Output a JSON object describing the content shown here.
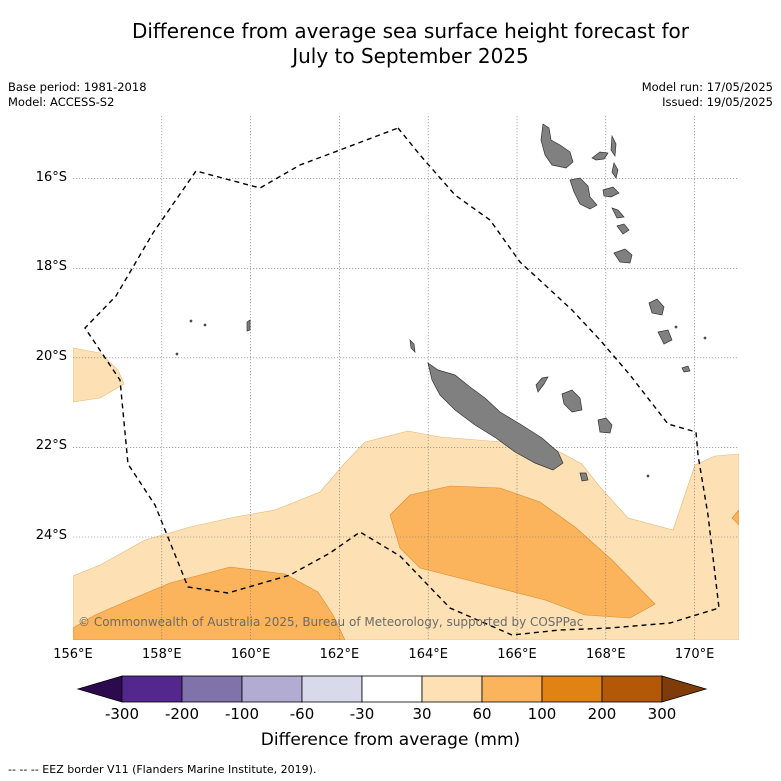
{
  "title_line1": "Difference from average sea surface height forecast for",
  "title_line2": "July to September 2025",
  "meta_left": {
    "base_period": "Base period: 1981-2018",
    "model": "Model: ACCESS-S2"
  },
  "meta_right": {
    "model_run": "Model run: 17/05/2025",
    "issued": "Issued: 19/05/2025"
  },
  "map": {
    "lon_range": [
      156,
      171
    ],
    "lat_range": [
      -26.3,
      -14.6
    ],
    "lat_ticks": [
      {
        "value": -16,
        "label": "16°S"
      },
      {
        "value": -18,
        "label": "18°S"
      },
      {
        "value": -20,
        "label": "20°S"
      },
      {
        "value": -22,
        "label": "22°S"
      },
      {
        "value": -24,
        "label": "24°S"
      }
    ],
    "lon_ticks": [
      {
        "value": 156,
        "label": "156°E"
      },
      {
        "value": 158,
        "label": "158°E"
      },
      {
        "value": 160,
        "label": "160°E"
      },
      {
        "value": 162,
        "label": "162°E"
      },
      {
        "value": 164,
        "label": "164°E"
      },
      {
        "value": 166,
        "label": "166°E"
      },
      {
        "value": 168,
        "label": "168°E"
      },
      {
        "value": 170,
        "label": "170°E"
      }
    ],
    "land_color": "#808080",
    "ocean_color": "#ffffff"
  },
  "copyright": "© Commonwealth of Australia 2025, Bureau of Meteorology, supported by COSPPac",
  "colorbar": {
    "title": "Difference from average (mm)",
    "tick_labels": [
      "-300",
      "-200",
      "-100",
      "-60",
      "-30",
      "30",
      "60",
      "100",
      "200",
      "300"
    ],
    "colors": [
      "#2d0a4e",
      "#54278f",
      "#8073ac",
      "#b2abd2",
      "#d8daeb",
      "#ffffff",
      "#fde0b3",
      "#fbb35c",
      "#e08214",
      "#b35806",
      "#7f3b08"
    ]
  },
  "footer": "-- -- -- EEZ border V11 (Flanders Marine Institute, 2019)."
}
